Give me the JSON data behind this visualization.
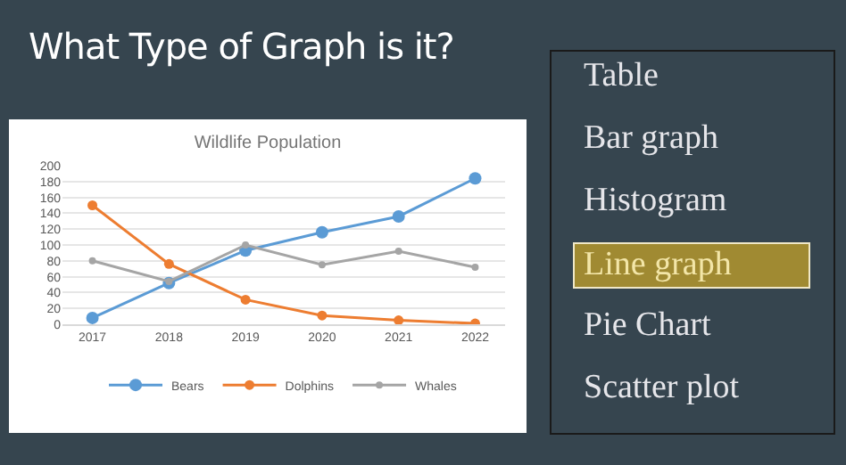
{
  "chart_data": {
    "type": "line",
    "title": "Wildlife Population",
    "categories": [
      "2017",
      "2018",
      "2019",
      "2020",
      "2021",
      "2022"
    ],
    "series": [
      {
        "name": "Bears",
        "color": "#5b9bd5",
        "values": [
          8,
          52,
          93,
          116,
          136,
          184
        ]
      },
      {
        "name": "Dolphins",
        "color": "#ed7d31",
        "values": [
          150,
          76,
          31,
          11,
          5,
          1
        ]
      },
      {
        "name": "Whales",
        "color": "#a5a5a5",
        "values": [
          80,
          54,
          100,
          75,
          92,
          72
        ]
      }
    ],
    "ylim": [
      0,
      200
    ],
    "yticks": [
      0,
      20,
      40,
      60,
      80,
      100,
      120,
      140,
      160,
      180,
      200
    ],
    "grid": "y",
    "legend": "bottom",
    "marker": "circle",
    "line_style": "solid",
    "annotations": [
      "What Type of Graph is it?",
      "Table",
      "Bar graph",
      "Histogram",
      "Line graph",
      "Pie Chart",
      "Scatter plot"
    ]
  }
}
